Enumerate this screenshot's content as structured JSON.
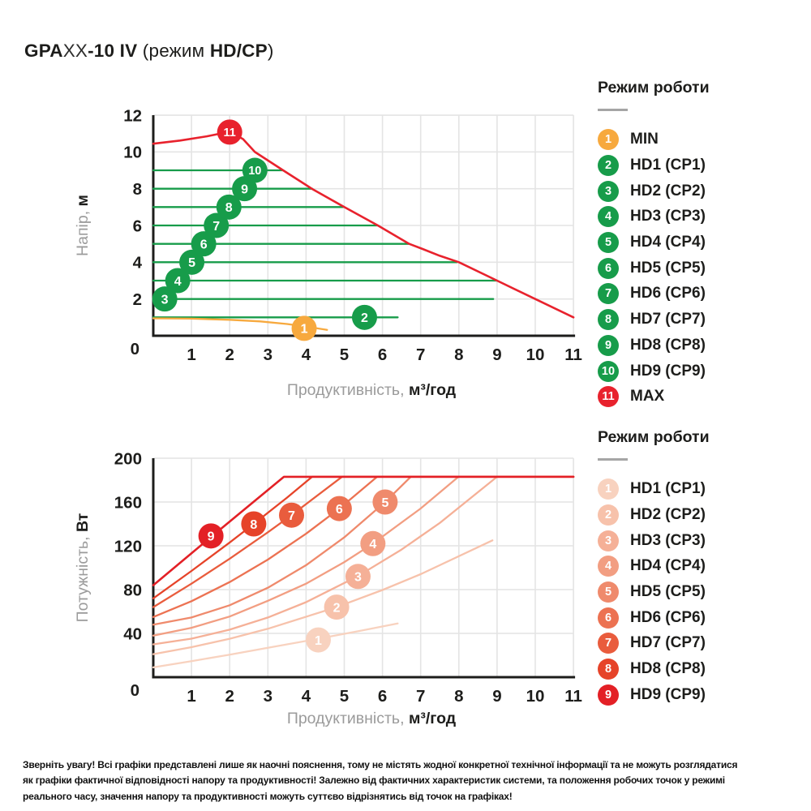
{
  "title": {
    "bold1": "GPA",
    "light1": "XX",
    "bold2": "-10 IV",
    "regular1": " (режим ",
    "bold3": "HD/CP",
    "regular2": ")"
  },
  "colors": {
    "green": "#179c4a",
    "orange": "#f7a93e",
    "red": "#e8222d",
    "axis": "#1d1d1b",
    "grid": "#e4e4e4",
    "gray_text": "#9b9b9b",
    "dark_text": "#1d1d1b",
    "power_palette": [
      "#f8d2bf",
      "#f7c2ab",
      "#f5b097",
      "#f29e82",
      "#ef8a6c",
      "#ec7252",
      "#e95c3d",
      "#e64329",
      "#e32026"
    ]
  },
  "chart_data": [
    {
      "type": "line",
      "name": "head-flow-chart",
      "xlabel": {
        "gray": "Продуктивність, ",
        "bold": "м³/год"
      },
      "ylabel": {
        "gray": "Напір, ",
        "bold": "м"
      },
      "xlim": [
        0,
        11
      ],
      "ylim": [
        0,
        12
      ],
      "xticks": [
        0,
        1,
        2,
        3,
        4,
        5,
        6,
        7,
        8,
        9,
        10,
        11
      ],
      "yticks": [
        2,
        4,
        6,
        8,
        10,
        12
      ],
      "grid": true,
      "series": [
        {
          "name": "HD1 (CP1)",
          "color": "#179c4a",
          "points": [
            [
              0,
              1
            ],
            [
              6.4,
              1
            ]
          ]
        },
        {
          "name": "HD2 (CP2)",
          "color": "#179c4a",
          "points": [
            [
              0,
              2
            ],
            [
              8.9,
              2
            ]
          ]
        },
        {
          "name": "HD3 (CP3)",
          "color": "#179c4a",
          "points": [
            [
              0,
              3
            ],
            [
              9.0,
              3
            ]
          ]
        },
        {
          "name": "HD4 (CP4)",
          "color": "#179c4a",
          "points": [
            [
              0,
              4
            ],
            [
              7.95,
              4
            ]
          ]
        },
        {
          "name": "HD5 (CP5)",
          "color": "#179c4a",
          "points": [
            [
              0,
              5
            ],
            [
              6.7,
              5
            ]
          ]
        },
        {
          "name": "HD6 (CP6)",
          "color": "#179c4a",
          "points": [
            [
              0,
              6
            ],
            [
              5.88,
              6
            ]
          ]
        },
        {
          "name": "HD7 (CP7)",
          "color": "#179c4a",
          "points": [
            [
              0,
              7
            ],
            [
              4.97,
              7
            ]
          ]
        },
        {
          "name": "HD8 (CP8)",
          "color": "#179c4a",
          "points": [
            [
              0,
              8
            ],
            [
              4.16,
              8
            ]
          ]
        },
        {
          "name": "HD9 (CP9)",
          "color": "#179c4a",
          "points": [
            [
              0,
              9
            ],
            [
              3.4,
              9
            ]
          ]
        },
        {
          "name": "MIN",
          "color": "#f7a93e",
          "points": [
            [
              0,
              0.95
            ],
            [
              1,
              0.93
            ],
            [
              2,
              0.87
            ],
            [
              2.8,
              0.78
            ],
            [
              3.5,
              0.64
            ],
            [
              4,
              0.5
            ],
            [
              4.55,
              0.32
            ]
          ]
        },
        {
          "name": "MAX",
          "color": "#e8222d",
          "width": 2.6,
          "points": [
            [
              0,
              10.45
            ],
            [
              0.7,
              10.62
            ],
            [
              1.4,
              10.85
            ],
            [
              2,
              11.1
            ],
            [
              2.35,
              10.7
            ],
            [
              2.66,
              10
            ],
            [
              3.4,
              9
            ],
            [
              4.15,
              8
            ],
            [
              5,
              7
            ],
            [
              5.88,
              6
            ],
            [
              6.7,
              5
            ],
            [
              7.05,
              4.72
            ],
            [
              7.5,
              4.35
            ],
            [
              8,
              4
            ],
            [
              9,
              3
            ],
            [
              10,
              2
            ],
            [
              11,
              1
            ]
          ]
        }
      ],
      "markers": [
        {
          "label": "1",
          "x": 3.95,
          "y": 0.4,
          "color": "#f7a93e"
        },
        {
          "label": "2",
          "x": 5.53,
          "y": 1.0,
          "color": "#179c4a"
        },
        {
          "label": "3",
          "x": 0.3,
          "y": 2.0,
          "color": "#179c4a"
        },
        {
          "label": "4",
          "x": 0.64,
          "y": 3.0,
          "color": "#179c4a"
        },
        {
          "label": "5",
          "x": 1.01,
          "y": 4.0,
          "color": "#179c4a"
        },
        {
          "label": "6",
          "x": 1.32,
          "y": 5.0,
          "color": "#179c4a"
        },
        {
          "label": "7",
          "x": 1.65,
          "y": 6.0,
          "color": "#179c4a"
        },
        {
          "label": "8",
          "x": 1.98,
          "y": 7.0,
          "color": "#179c4a"
        },
        {
          "label": "9",
          "x": 2.39,
          "y": 8.0,
          "color": "#179c4a"
        },
        {
          "label": "10",
          "x": 2.66,
          "y": 9.0,
          "color": "#179c4a"
        },
        {
          "label": "11",
          "x": 2.0,
          "y": 11.08,
          "color": "#e8222d"
        }
      ]
    },
    {
      "type": "line",
      "name": "power-flow-chart",
      "xlabel": {
        "gray": "Продуктивність, ",
        "bold": "м³/год"
      },
      "ylabel": {
        "gray": "Потужність, ",
        "bold": "Вт"
      },
      "xlim": [
        0,
        11
      ],
      "ylim": [
        0,
        200
      ],
      "xticks": [
        0,
        1,
        2,
        3,
        4,
        5,
        6,
        7,
        8,
        9,
        10,
        11
      ],
      "yticks": [
        40,
        80,
        120,
        160,
        200
      ],
      "grid": true,
      "plateau_watts": 183,
      "series": [
        {
          "name": "HD1 (CP1)",
          "color": "#f8d2bf",
          "points": [
            [
              0,
              9
            ],
            [
              1,
              14.7
            ],
            [
              2,
              20.6
            ],
            [
              3,
              26.8
            ],
            [
              4.3,
              35
            ],
            [
              5.4,
              42.2
            ],
            [
              6.4,
              49
            ]
          ]
        },
        {
          "name": "HD2 (CP2)",
          "color": "#f7c2ab",
          "points": [
            [
              0,
              21
            ],
            [
              1,
              27.4
            ],
            [
              2,
              35.1
            ],
            [
              3,
              44.2
            ],
            [
              4.8,
              64
            ],
            [
              6,
              79.6
            ],
            [
              7,
              94.1
            ],
            [
              8.88,
              125
            ]
          ]
        },
        {
          "name": "HD3 (CP3)",
          "color": "#f5b097",
          "points": [
            [
              0,
              30
            ],
            [
              1,
              35.2
            ],
            [
              2,
              43.4
            ],
            [
              3,
              54.5
            ],
            [
              4,
              68.5
            ],
            [
              5.34,
              92
            ],
            [
              6.5,
              116.6
            ],
            [
              7.5,
              140.9
            ],
            [
              9,
              183
            ],
            [
              11,
              183
            ]
          ]
        },
        {
          "name": "HD4 (CP4)",
          "color": "#f29e82",
          "points": [
            [
              0,
              38
            ],
            [
              1,
              45.1
            ],
            [
              2,
              55.4
            ],
            [
              3,
              69.8
            ],
            [
              4,
              85.4
            ],
            [
              5,
              105.1
            ],
            [
              5.75,
              122
            ],
            [
              7,
              154.1
            ],
            [
              7.99,
              183
            ],
            [
              11,
              183
            ]
          ]
        },
        {
          "name": "HD5 (CP5)",
          "color": "#ef8a6c",
          "points": [
            [
              0,
              48
            ],
            [
              1,
              54.5
            ],
            [
              2,
              65.7
            ],
            [
              3,
              81.7
            ],
            [
              4,
              102.3
            ],
            [
              5,
              127.7
            ],
            [
              6.07,
              160
            ],
            [
              6.74,
              183
            ],
            [
              11,
              183
            ]
          ]
        },
        {
          "name": "HD6 (CP6)",
          "color": "#ec7252",
          "points": [
            [
              0,
              55
            ],
            [
              1,
              69.4
            ],
            [
              2,
              86.9
            ],
            [
              3,
              107.4
            ],
            [
              4,
              131
            ],
            [
              4.87,
              154
            ],
            [
              5.86,
              183
            ],
            [
              11,
              183
            ]
          ]
        },
        {
          "name": "HD7 (CP7)",
          "color": "#e95c3d",
          "points": [
            [
              0,
              64
            ],
            [
              1,
              85.4
            ],
            [
              2,
              108.2
            ],
            [
              3,
              132.4
            ],
            [
              3.62,
              148
            ],
            [
              4.94,
              183
            ],
            [
              11,
              183
            ]
          ]
        },
        {
          "name": "HD8 (CP8)",
          "color": "#e64329",
          "points": [
            [
              0,
              72
            ],
            [
              1,
              97
            ],
            [
              2,
              123
            ],
            [
              2.63,
              140
            ],
            [
              3.5,
              164
            ],
            [
              4.16,
              183
            ],
            [
              11,
              183
            ]
          ]
        },
        {
          "name": "HD9 (CP9)",
          "color": "#e32026",
          "width": 2.6,
          "points": [
            [
              0,
              84
            ],
            [
              1.51,
              128
            ],
            [
              3.42,
              183
            ],
            [
              11,
              183
            ]
          ]
        }
      ],
      "markers": [
        {
          "label": "1",
          "x": 4.32,
          "y": 34,
          "color": "#f8d2bf"
        },
        {
          "label": "2",
          "x": 4.8,
          "y": 64,
          "color": "#f7c2ab"
        },
        {
          "label": "3",
          "x": 5.36,
          "y": 92,
          "color": "#f5b097"
        },
        {
          "label": "4",
          "x": 5.75,
          "y": 122,
          "color": "#f29e82"
        },
        {
          "label": "5",
          "x": 6.07,
          "y": 160,
          "color": "#ef8a6c"
        },
        {
          "label": "6",
          "x": 4.87,
          "y": 154,
          "color": "#ec7252"
        },
        {
          "label": "7",
          "x": 3.62,
          "y": 148,
          "color": "#e95c3d"
        },
        {
          "label": "8",
          "x": 2.63,
          "y": 140,
          "color": "#e64329"
        },
        {
          "label": "9",
          "x": 1.51,
          "y": 129,
          "color": "#e32026"
        }
      ]
    }
  ],
  "legends": [
    {
      "title": "Режим роботи",
      "items": [
        {
          "num": "1",
          "label": "MIN",
          "color": "#f7a93e"
        },
        {
          "num": "2",
          "label": "HD1 (CP1)",
          "color": "#179c4a"
        },
        {
          "num": "3",
          "label": "HD2 (CP2)",
          "color": "#179c4a"
        },
        {
          "num": "4",
          "label": "HD3 (CP3)",
          "color": "#179c4a"
        },
        {
          "num": "5",
          "label": "HD4 (CP4)",
          "color": "#179c4a"
        },
        {
          "num": "6",
          "label": "HD5 (CP5)",
          "color": "#179c4a"
        },
        {
          "num": "7",
          "label": "HD6 (CP6)",
          "color": "#179c4a"
        },
        {
          "num": "8",
          "label": "HD7 (CP7)",
          "color": "#179c4a"
        },
        {
          "num": "9",
          "label": "HD8 (CP8)",
          "color": "#179c4a"
        },
        {
          "num": "10",
          "label": "HD9 (CP9)",
          "color": "#179c4a"
        },
        {
          "num": "11",
          "label": "MAX",
          "color": "#e8222d"
        }
      ]
    },
    {
      "title": "Режим роботи",
      "items": [
        {
          "num": "1",
          "label": "HD1 (CP1)",
          "color": "#f8d2bf"
        },
        {
          "num": "2",
          "label": "HD2 (CP2)",
          "color": "#f7c2ab"
        },
        {
          "num": "3",
          "label": "HD3 (CP3)",
          "color": "#f5b097"
        },
        {
          "num": "4",
          "label": "HD4 (CP4)",
          "color": "#f29e82"
        },
        {
          "num": "5",
          "label": "HD5 (CP5)",
          "color": "#ef8a6c"
        },
        {
          "num": "6",
          "label": "HD6 (CP6)",
          "color": "#ec7252"
        },
        {
          "num": "7",
          "label": "HD7 (CP7)",
          "color": "#e95c3d"
        },
        {
          "num": "8",
          "label": "HD8 (CP8)",
          "color": "#e64329"
        },
        {
          "num": "9",
          "label": "HD9 (CP9)",
          "color": "#e32026"
        }
      ]
    }
  ],
  "footer": {
    "lines": [
      "Зверніть увагу! Всі графіки представлені лише як наочні пояснення, тому не містять жодної конкретної технічної інформації та не можуть розглядатися",
      "як графіки фактичної відповідності напору та продуктивності! Залежно від фактичних характеристик системи, та положення робочих точок у режимі",
      "реального часу, значення напору та продуктивності можуть суттєво відрізнятись від точок на графіках!"
    ]
  }
}
